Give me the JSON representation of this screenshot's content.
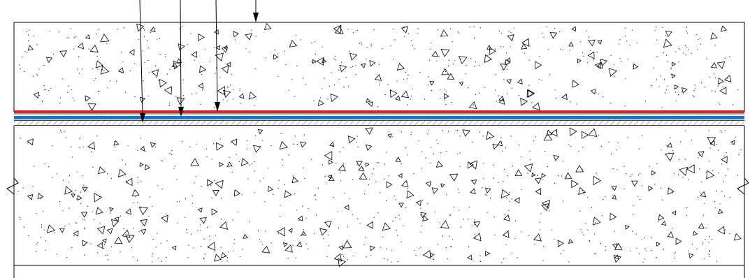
{
  "drawing": {
    "annotations": [],
    "colors": {
      "background": "#ffffff",
      "line": "#000000",
      "red_layer": "#d7262b",
      "blue_layer": "#1976c6",
      "hatch": "#d06020"
    },
    "layers_top_to_bottom": [
      "concrete-slab-upper",
      "red-membrane-layer",
      "blue-membrane-layer",
      "hatched-membrane-layer",
      "concrete-slab-lower"
    ],
    "leader_arrow_count": 4,
    "break_symbols": [
      "left-break",
      "right-break"
    ]
  }
}
